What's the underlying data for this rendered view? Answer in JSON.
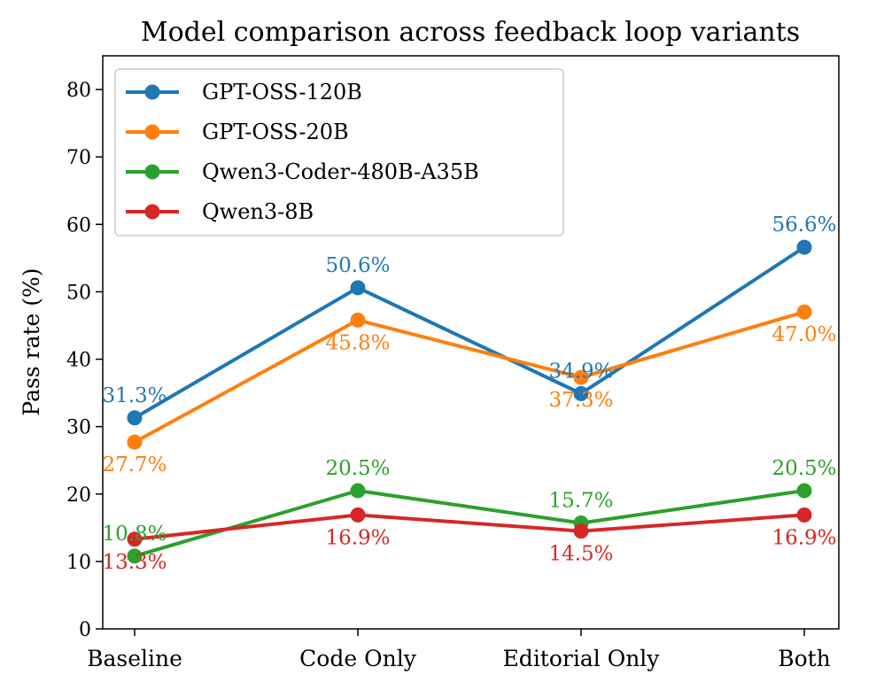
{
  "chart_data": {
    "type": "line",
    "title": "Model comparison across feedback loop variants",
    "xlabel": "",
    "ylabel": "Pass rate (%)",
    "categories": [
      "Baseline",
      "Code Only",
      "Editorial Only",
      "Both"
    ],
    "ylim": [
      0,
      85
    ],
    "yticks": [
      0,
      10,
      20,
      30,
      40,
      50,
      60,
      70,
      80
    ],
    "grid": false,
    "legend_position": "top-left",
    "series": [
      {
        "name": "GPT-OSS-120B",
        "color": "#1f77b4",
        "values": [
          31.3,
          50.6,
          34.9,
          56.6
        ],
        "labels": [
          "31.3%",
          "50.6%",
          "34.9%",
          "56.6%"
        ],
        "label_side": [
          "above",
          "above",
          "above",
          "above"
        ]
      },
      {
        "name": "GPT-OSS-20B",
        "color": "#ff7f0e",
        "values": [
          27.7,
          45.8,
          37.3,
          47.0
        ],
        "labels": [
          "27.7%",
          "45.8%",
          "37.3%",
          "47.0%"
        ],
        "label_side": [
          "below",
          "below",
          "below",
          "below"
        ]
      },
      {
        "name": "Qwen3-Coder-480B-A35B",
        "color": "#2ca02c",
        "values": [
          10.8,
          20.5,
          15.7,
          20.5
        ],
        "labels": [
          "10.8%",
          "20.5%",
          "15.7%",
          "20.5%"
        ],
        "label_side": [
          "above",
          "above",
          "above",
          "above"
        ]
      },
      {
        "name": "Qwen3-8B",
        "color": "#d62728",
        "values": [
          13.3,
          16.9,
          14.5,
          16.9
        ],
        "labels": [
          "13.3%",
          "16.9%",
          "14.5%",
          "16.9%"
        ],
        "label_side": [
          "below",
          "below",
          "below",
          "below"
        ]
      }
    ]
  }
}
